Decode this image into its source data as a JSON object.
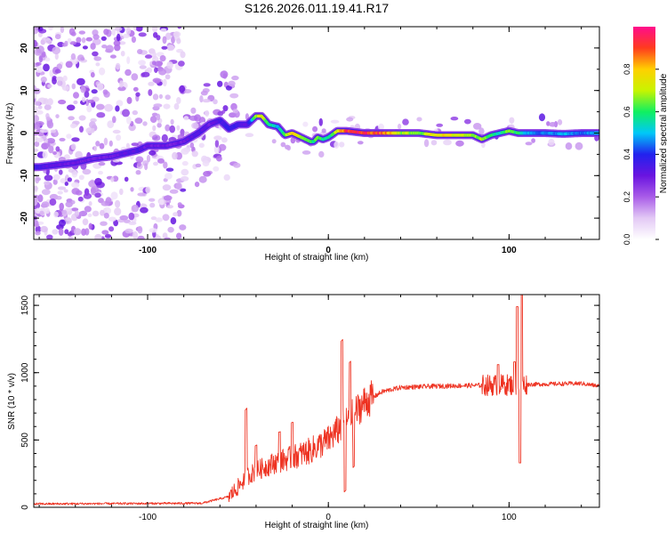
{
  "title": "S126.2026.011.19.41.R17",
  "chart_data": [
    {
      "type": "heatmap",
      "xlabel": "Height of straight line (km)",
      "ylabel": "Frequency (Hz)",
      "xlim": [
        -163,
        150
      ],
      "ylim": [
        -25,
        25
      ],
      "xticks": [
        -100,
        0,
        100
      ],
      "yticks": [
        20,
        10,
        0,
        -10,
        -20
      ],
      "colorbar": {
        "label": "Normalized spectral amplitude",
        "range": [
          0,
          1
        ],
        "ticks": [
          "0.0",
          "0.2",
          "0.4",
          "0.6",
          "0.8"
        ],
        "tick_values": [
          0.0,
          0.2,
          0.4,
          0.6,
          0.8
        ],
        "colors": [
          "#ffffff",
          "#e3c9f5",
          "#a95ce8",
          "#6a14e0",
          "#2222ee",
          "#00c8f8",
          "#10f060",
          "#c8f400",
          "#ffd000",
          "#ff3c1e",
          "#ff0c8c"
        ]
      },
      "ridge": {
        "x": [
          -160,
          -140,
          -130,
          -120,
          -105,
          -100,
          -90,
          -80,
          -72,
          -66,
          -60,
          -55,
          -50,
          -45,
          -40,
          -37,
          -33,
          -28,
          -24,
          -20,
          -15,
          -10,
          -8,
          -6,
          -3,
          0,
          5,
          10,
          20,
          30,
          40,
          50,
          60,
          70,
          80,
          85,
          90,
          95,
          100,
          105,
          110,
          120,
          130,
          140,
          150
        ],
        "y": [
          -8,
          -7,
          -6,
          -5.5,
          -4,
          -3,
          -3,
          -2,
          0,
          2,
          3,
          1,
          2,
          2,
          4,
          4,
          2,
          1.5,
          -0.5,
          0,
          -1,
          -2,
          -2,
          -1,
          -1.5,
          -1,
          0.5,
          0.5,
          0,
          0,
          0,
          0,
          -0.5,
          -0.5,
          -0.5,
          -1.5,
          -0.5,
          0,
          0.5,
          0,
          0,
          0,
          -0.2,
          0,
          0
        ],
        "amplitude": [
          0.35,
          0.3,
          0.3,
          0.3,
          0.35,
          0.3,
          0.3,
          0.3,
          0.35,
          0.3,
          0.35,
          0.4,
          0.35,
          0.3,
          0.7,
          0.75,
          0.6,
          0.5,
          0.65,
          0.8,
          0.7,
          0.65,
          0.6,
          0.7,
          0.6,
          0.55,
          0.75,
          0.95,
          0.95,
          0.9,
          0.7,
          0.65,
          0.8,
          0.75,
          0.7,
          0.7,
          0.6,
          0.55,
          0.7,
          0.6,
          0.5,
          0.45,
          0.5,
          0.45,
          0.5
        ]
      }
    },
    {
      "type": "line",
      "xlabel": "Height of straight line (km)",
      "ylabel": "SNR (10 * v/v)",
      "xlim": [
        -163,
        150
      ],
      "ylim": [
        0,
        1580
      ],
      "xticks": [
        -100,
        0,
        100
      ],
      "yticks": [
        0,
        500,
        1000,
        1500
      ],
      "color": "#ee3322",
      "baseline": {
        "x": [
          -163,
          -70,
          -55,
          -50,
          -45,
          -40,
          -35,
          -30,
          -20,
          -10,
          0,
          10,
          20,
          30,
          40,
          60,
          80,
          100,
          120,
          140,
          150
        ],
        "y": [
          25,
          30,
          80,
          150,
          230,
          270,
          300,
          330,
          370,
          420,
          500,
          640,
          780,
          860,
          890,
          900,
          905,
          910,
          915,
          920,
          900
        ]
      },
      "spikes": [
        {
          "x": -45.5,
          "y": 730
        },
        {
          "x": -40,
          "y": 460
        },
        {
          "x": -27,
          "y": 560
        },
        {
          "x": -20,
          "y": 630
        },
        {
          "x": 7.5,
          "y": 1240
        },
        {
          "x": 9.2,
          "y": 120
        },
        {
          "x": 12,
          "y": 1080
        },
        {
          "x": 14,
          "y": 300
        },
        {
          "x": 94,
          "y": 1060
        },
        {
          "x": 103,
          "y": 1080
        },
        {
          "x": 104.5,
          "y": 1490
        },
        {
          "x": 106,
          "y": 330
        },
        {
          "x": 107,
          "y": 1580
        }
      ]
    }
  ]
}
